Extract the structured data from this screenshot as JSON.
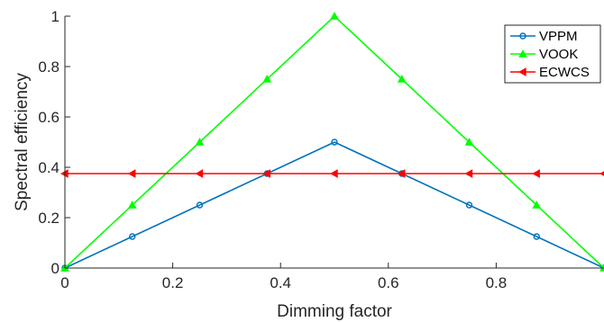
{
  "chart_data": {
    "type": "line",
    "xlabel": "Dimming factor",
    "ylabel": "Spectral efficiency",
    "xlim": [
      0,
      1
    ],
    "ylim": [
      0,
      1
    ],
    "x_ticks": [
      "0",
      "0.2",
      "0.4",
      "0.6",
      "0.8"
    ],
    "y_ticks": [
      "0",
      "0.2",
      "0.4",
      "0.6",
      "0.8",
      "1"
    ],
    "grid": false,
    "legend_position": "top-right",
    "series": [
      {
        "name": "VPPM",
        "color": "#0072BD",
        "marker": "circle",
        "x": [
          0,
          0.125,
          0.25,
          0.375,
          0.5,
          0.625,
          0.75,
          0.875,
          1
        ],
        "values": [
          0,
          0.125,
          0.25,
          0.375,
          0.5,
          0.375,
          0.25,
          0.125,
          0
        ]
      },
      {
        "name": "VOOK",
        "color": "#00FF00",
        "marker": "triangle-up",
        "x": [
          0,
          0.125,
          0.25,
          0.375,
          0.5,
          0.625,
          0.75,
          0.875,
          1
        ],
        "values": [
          0,
          0.25,
          0.5,
          0.75,
          1,
          0.75,
          0.5,
          0.25,
          0
        ]
      },
      {
        "name": "ECWCS",
        "color": "#FF0000",
        "marker": "triangle-left",
        "x": [
          0,
          0.125,
          0.25,
          0.375,
          0.5,
          0.625,
          0.75,
          0.875,
          1
        ],
        "values": [
          0.375,
          0.375,
          0.375,
          0.375,
          0.375,
          0.375,
          0.375,
          0.375,
          0.375
        ]
      }
    ]
  }
}
